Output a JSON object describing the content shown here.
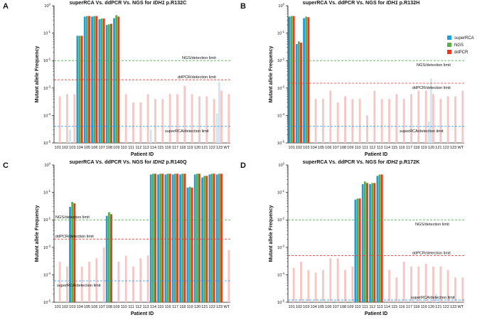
{
  "chart_data": [
    {
      "type": "bar",
      "panel": "A",
      "title": {
        "prefix": "superRCA Vs. ddPCR Vs. NGS  for ",
        "gene": "IDH1",
        "mutation": " p.R132C"
      },
      "xlabel": "Patient ID",
      "ylabel": "Mutant allele Frequency",
      "yscale": "log",
      "ylim": [
        1e-05,
        1
      ],
      "categories": [
        "101",
        "102",
        "103",
        "104",
        "105",
        "106",
        "107",
        "108",
        "109",
        "110",
        "111",
        "112",
        "113",
        "114",
        "115",
        "116",
        "117",
        "118",
        "119",
        "120",
        "121",
        "122",
        "123",
        "WT"
      ],
      "series": [
        {
          "name": "superRCA",
          "values": [
            null,
            null,
            3e-05,
            0.08,
            0.4,
            0.4,
            0.32,
            0.2,
            0.35,
            null,
            null,
            null,
            null,
            3e-05,
            null,
            null,
            null,
            null,
            null,
            null,
            null,
            null,
            0.00012,
            null
          ]
        },
        {
          "name": "NGS",
          "values": [
            null,
            null,
            null,
            0.08,
            0.42,
            0.42,
            0.34,
            0.21,
            0.45,
            null,
            null,
            null,
            null,
            null,
            null,
            null,
            null,
            null,
            null,
            null,
            null,
            null,
            0.0016,
            null
          ]
        },
        {
          "name": "ddPCR",
          "values": [
            0.0005,
            0.0006,
            0.0006,
            0.08,
            0.42,
            0.42,
            0.34,
            0.22,
            0.4,
            0.0006,
            0.0003,
            0.0003,
            0.0006,
            0.0004,
            0.0004,
            0.0006,
            0.0006,
            0.0012,
            0.0006,
            0.0005,
            0.0005,
            0.0004,
            0.0008,
            0.0006
          ]
        }
      ],
      "limits": [
        {
          "label": "NGS/detection limit",
          "value": 0.01,
          "color": "#4caf50"
        },
        {
          "label": "ddPCR/detection limit",
          "value": 0.002,
          "color": "#e53935"
        },
        {
          "label": "superRCA/detection limit",
          "value": 4e-05,
          "color": "#2196f3"
        }
      ]
    },
    {
      "type": "bar",
      "panel": "B",
      "title": {
        "prefix": "superRCA Vs. ddPCR Vs. NGS  for ",
        "gene": "IDH1",
        "mutation": " p.R132H"
      },
      "xlabel": "Patient ID",
      "ylabel": "Mutant allele Frequency",
      "yscale": "log",
      "ylim": [
        1e-05,
        1
      ],
      "categories": [
        "101",
        "102",
        "103",
        "104",
        "105",
        "106",
        "107",
        "108",
        "109",
        "110",
        "111",
        "112",
        "113",
        "114",
        "115",
        "116",
        "117",
        "118",
        "119",
        "120",
        "121",
        "122",
        "123",
        "WT"
      ],
      "series": [
        {
          "name": "superRCA",
          "values": [
            0.4,
            0.04,
            0.35,
            null,
            null,
            null,
            null,
            null,
            null,
            null,
            null,
            null,
            null,
            null,
            null,
            null,
            null,
            null,
            null,
            6e-05,
            null,
            null,
            null,
            null
          ]
        },
        {
          "name": "NGS",
          "values": [
            0.42,
            0.05,
            0.4,
            null,
            null,
            null,
            null,
            null,
            null,
            null,
            null,
            null,
            null,
            null,
            null,
            null,
            null,
            null,
            null,
            0.0022,
            null,
            null,
            null,
            null
          ]
        },
        {
          "name": "ddPCR",
          "values": [
            0.42,
            0.045,
            0.38,
            0.0004,
            0.0004,
            0.0008,
            0.0003,
            0.0005,
            0.0004,
            0.0004,
            0.0001,
            0.0008,
            0.0004,
            0.0004,
            0.0006,
            0.0004,
            0.0006,
            0.0008,
            0.0008,
            0.0006,
            0.0004,
            0.0005,
            0.0005,
            0.0008
          ]
        }
      ],
      "limits": [
        {
          "label": "NGS/detection limit",
          "value": 0.01,
          "color": "#4caf50"
        },
        {
          "label": "ddPCR/detection limit",
          "value": 0.0015,
          "color": "#e53935"
        },
        {
          "label": "superRCA/detection limit",
          "value": 4e-05,
          "color": "#2196f3"
        }
      ]
    },
    {
      "type": "bar",
      "panel": "C",
      "title": {
        "prefix": "superRCA Vs. ddPCR Vs. NGS  for ",
        "gene": "IDH2",
        "mutation": " p.R140Q"
      },
      "xlabel": "Patient ID",
      "ylabel": "Mutant allele Frequency",
      "yscale": "log",
      "ylim": [
        1e-05,
        1
      ],
      "categories": [
        "101",
        "102",
        "103",
        "104",
        "105",
        "106",
        "107",
        "108",
        "109",
        "110",
        "111",
        "112",
        "113",
        "114",
        "115",
        "116",
        "117",
        "118",
        "119",
        "120",
        "121",
        "122",
        "123",
        "WT"
      ],
      "series": [
        {
          "name": "superRCA",
          "values": [
            null,
            null,
            0.03,
            null,
            null,
            null,
            null,
            0.014,
            null,
            null,
            null,
            null,
            null,
            0.45,
            0.45,
            0.45,
            0.45,
            0.45,
            0.15,
            0.45,
            0.35,
            0.45,
            0.45,
            null
          ]
        },
        {
          "name": "NGS",
          "values": [
            null,
            null,
            0.045,
            null,
            null,
            null,
            null,
            0.019,
            null,
            null,
            null,
            null,
            null,
            0.48,
            0.48,
            0.48,
            0.48,
            0.48,
            0.16,
            0.48,
            0.4,
            0.48,
            0.48,
            null
          ]
        },
        {
          "name": "ddPCR",
          "values": [
            0.0003,
            0.0002,
            0.04,
            0.0002,
            0.0003,
            0.0004,
            0.001,
            0.016,
            0.0003,
            0.0005,
            0.0002,
            0.0004,
            0.0005,
            0.48,
            0.48,
            0.48,
            0.48,
            0.48,
            0.15,
            0.48,
            0.4,
            0.48,
            0.48,
            0.0008
          ]
        }
      ],
      "limits": [
        {
          "label": "NGS/detection limit",
          "value": 0.01,
          "color": "#4caf50"
        },
        {
          "label": "ddPCR/detection limit",
          "value": 0.002,
          "color": "#e53935"
        },
        {
          "label": "superRCA/detection limit",
          "value": 6e-05,
          "color": "#2196f3"
        }
      ]
    },
    {
      "type": "bar",
      "panel": "D",
      "title": {
        "prefix": "superRCA Vs. ddPCR Vs. NGS  for ",
        "gene": "IDH2",
        "mutation": " p.R172K"
      },
      "xlabel": "Patient ID",
      "ylabel": "Mutant allele Frequency",
      "yscale": "log",
      "ylim": [
        1e-05,
        1
      ],
      "categories": [
        "101",
        "102",
        "103",
        "104",
        "105",
        "106",
        "107",
        "108",
        "109",
        "110",
        "111",
        "112",
        "113",
        "114",
        "115",
        "116",
        "117",
        "118",
        "119",
        "120",
        "121",
        "122",
        "123",
        "WT"
      ],
      "series": [
        {
          "name": "superRCA",
          "values": [
            null,
            null,
            null,
            null,
            null,
            null,
            null,
            null,
            null,
            0.055,
            0.2,
            0.2,
            0.4,
            null,
            null,
            null,
            null,
            null,
            null,
            null,
            2e-05,
            null,
            null,
            null
          ]
        },
        {
          "name": "NGS",
          "values": [
            null,
            null,
            null,
            null,
            null,
            null,
            null,
            null,
            null,
            0.06,
            0.25,
            0.22,
            0.45,
            null,
            null,
            null,
            null,
            null,
            null,
            null,
            null,
            null,
            null,
            null
          ]
        },
        {
          "name": "ddPCR",
          "values": [
            0.00018,
            0.0003,
            0.00015,
            0.00012,
            0.00015,
            0.0004,
            0.0004,
            0.00015,
            0.0002,
            0.06,
            0.22,
            0.22,
            0.45,
            0.00015,
            8e-05,
            0.0003,
            0.0002,
            0.0002,
            0.00025,
            0.0002,
            0.0002,
            0.00015,
            8e-05,
            8e-05
          ]
        }
      ],
      "limits": [
        {
          "label": "NGS/detection limit",
          "value": 0.01,
          "color": "#4caf50"
        },
        {
          "label": "ddPCR/detection limit",
          "value": 0.0005,
          "color": "#e53935"
        },
        {
          "label": "superRCA/detection limit",
          "value": 1.2e-05,
          "color": "#2196f3"
        }
      ]
    }
  ],
  "legend": {
    "entries": [
      {
        "name": "superRCA",
        "color": "#1ea0dc"
      },
      {
        "name": "NGS",
        "color": "#5aaf4b"
      },
      {
        "name": "ddPCR",
        "color": "#e8391d"
      }
    ],
    "faded_color": "#f5c6c4"
  }
}
